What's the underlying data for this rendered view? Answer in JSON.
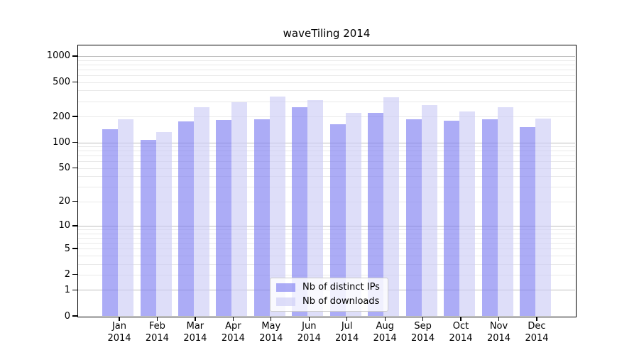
{
  "chart_data": {
    "type": "bar",
    "title": "waveTiling 2014",
    "categories": [
      "Jan",
      "Feb",
      "Mar",
      "Apr",
      "May",
      "Jun",
      "Jul",
      "Aug",
      "Sep",
      "Oct",
      "Nov",
      "Dec"
    ],
    "x_year_label": "2014",
    "series": [
      {
        "name": "Nb of distinct IPs",
        "values": [
          141,
          106,
          174,
          181,
          187,
          254,
          163,
          219,
          184,
          177,
          187,
          151
        ],
        "color": "rgba(124,124,240,0.63)"
      },
      {
        "name": "Nb of downloads",
        "values": [
          185,
          131,
          256,
          291,
          340,
          311,
          220,
          336,
          270,
          229,
          257,
          188
        ],
        "color": "rgba(203,203,246,0.63)"
      }
    ],
    "xlabel": "",
    "ylabel": "",
    "y_scale": "log1p",
    "y_ticks": [
      0,
      1,
      2,
      5,
      10,
      20,
      50,
      100,
      200,
      500,
      1000
    ],
    "ylim": [
      0,
      1326
    ],
    "grid": {
      "major_values": [
        1,
        10,
        100,
        1000
      ],
      "major_color": "rgba(0,0,0,0.26)",
      "minor_color": "rgba(0,0,0,0.085)"
    },
    "legend_position": "lower center",
    "legend_entries": [
      "Nb of distinct IPs",
      "Nb of downloads"
    ]
  }
}
